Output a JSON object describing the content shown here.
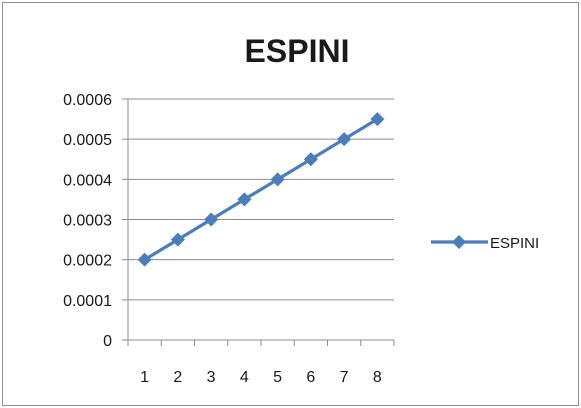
{
  "chart_data": {
    "type": "line",
    "title": "ESPINI",
    "xlabel": "",
    "ylabel": "",
    "categories": [
      "1",
      "2",
      "3",
      "4",
      "5",
      "6",
      "7",
      "8"
    ],
    "y_ticks": [
      "0",
      "0.0001",
      "0.0002",
      "0.0003",
      "0.0004",
      "0.0005",
      "0.0006"
    ],
    "ylim": [
      0,
      0.0006
    ],
    "series": [
      {
        "name": "ESPINI",
        "values": [
          0.0002,
          0.00025,
          0.0003,
          0.00035,
          0.0004,
          0.00045,
          0.0005,
          0.00055
        ],
        "color": "#4A7EBB",
        "marker": "diamond"
      }
    ],
    "grid": "horizontal",
    "legend_position": "right"
  }
}
